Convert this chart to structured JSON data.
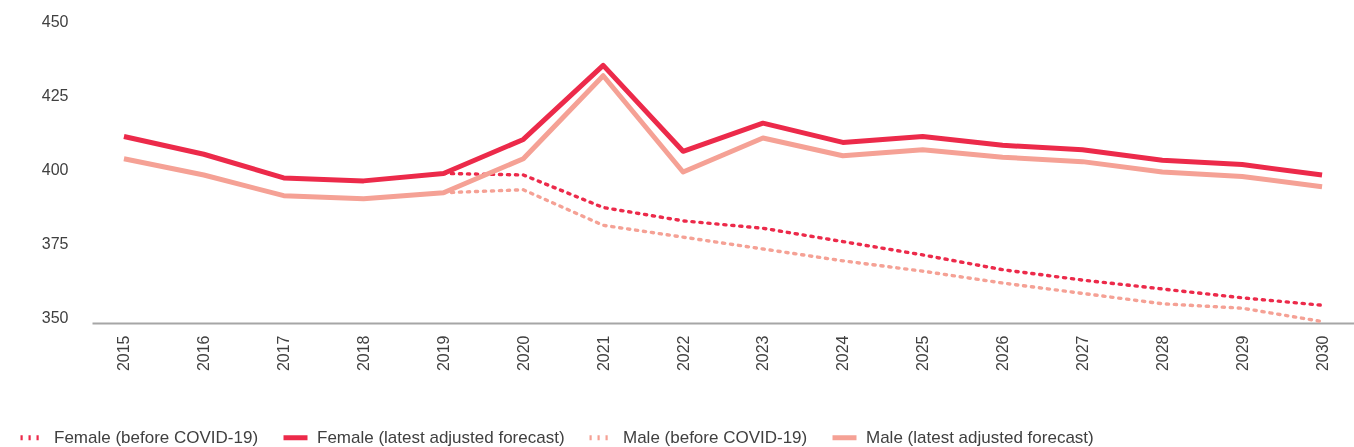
{
  "chart_data": {
    "type": "line",
    "categories": [
      "2015",
      "2016",
      "2017",
      "2018",
      "2019",
      "2020",
      "2021",
      "2022",
      "2023",
      "2024",
      "2025",
      "2026",
      "2027",
      "2028",
      "2029",
      "2030"
    ],
    "series": [
      {
        "name": "Female (before COVID-19)",
        "color": "#ec2a4a",
        "line_style": "dotted",
        "values": [
          null,
          null,
          null,
          null,
          398.5,
          398,
          387,
          382.5,
          380,
          375.5,
          371,
          366,
          362.5,
          359.5,
          356.5,
          354
        ]
      },
      {
        "name": "Female (latest adjusted forecast)",
        "color": "#ec2a4a",
        "line_style": "solid",
        "values": [
          411,
          405,
          397,
          396,
          398.5,
          410,
          435,
          406,
          415.5,
          409,
          411,
          408,
          406.5,
          403,
          401.5,
          398
        ]
      },
      {
        "name": "Male (before COVID-19)",
        "color": "#f5a195",
        "line_style": "dotted",
        "values": [
          null,
          null,
          null,
          null,
          392,
          393,
          381,
          377,
          373,
          369,
          365.5,
          361.5,
          358,
          354.5,
          353,
          348.5
        ]
      },
      {
        "name": "Male (latest adjusted forecast)",
        "color": "#f5a195",
        "line_style": "solid",
        "values": [
          403.5,
          398,
          391,
          390,
          392,
          403.5,
          431.5,
          399,
          410.5,
          404.5,
          406.5,
          404,
          402.5,
          399,
          397.5,
          394
        ]
      }
    ],
    "ylim": [
      348,
      450
    ],
    "yticks": [
      350,
      375,
      400,
      425,
      450
    ],
    "grid": false,
    "legend": "bottom"
  }
}
